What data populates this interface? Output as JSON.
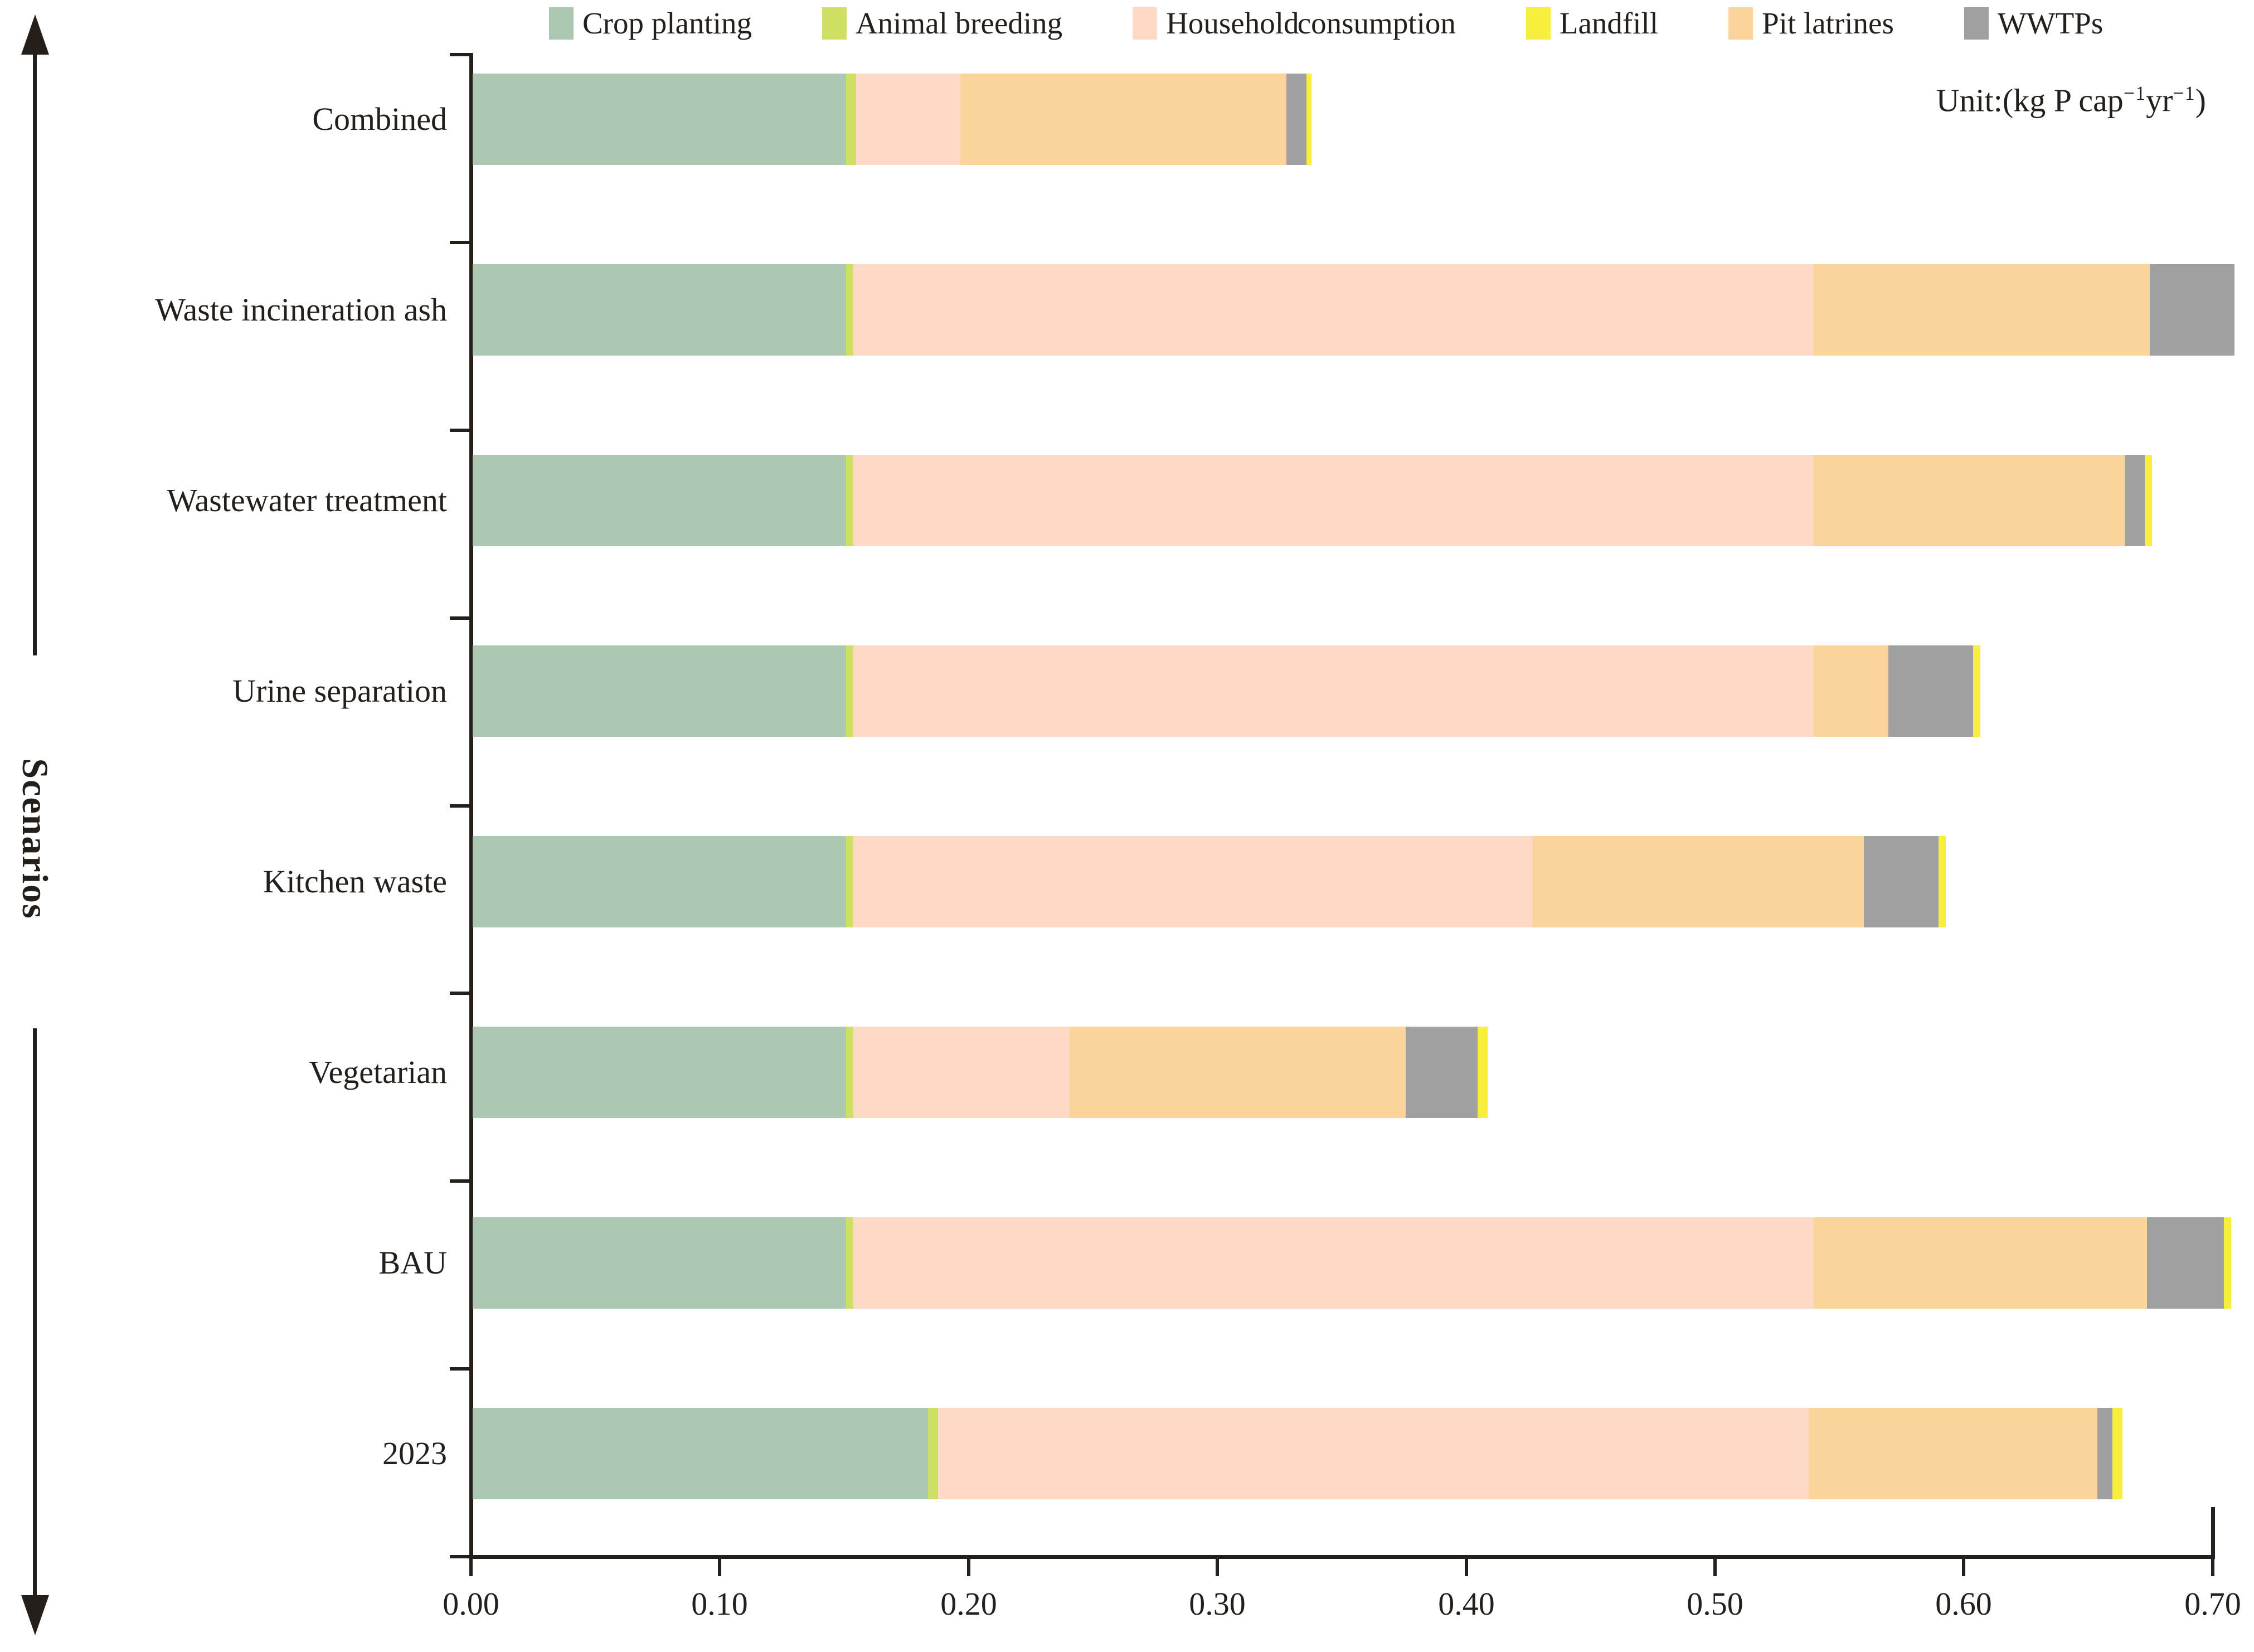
{
  "labels": {
    "ylabel": "Scenarios",
    "unit_parts": [
      {
        "type": "text",
        "value": "Unit:(kg P cap"
      },
      {
        "type": "sup",
        "value": "−1"
      },
      {
        "type": "text",
        "value": "yr"
      },
      {
        "type": "sup",
        "value": "−1"
      },
      {
        "type": "text",
        "value": ")"
      }
    ]
  },
  "chart_data": {
    "type": "bar",
    "orientation": "horizontal",
    "stacked": true,
    "title": "",
    "xlabel": "",
    "ylabel": "Scenarios",
    "unit": "kg P cap−1 yr−1",
    "xlim": [
      0.0,
      0.7
    ],
    "xticks": [
      "0.00",
      "0.10",
      "0.20",
      "0.30",
      "0.40",
      "0.50",
      "0.60",
      "0.70"
    ],
    "grid": false,
    "legend_position": "top",
    "categories": [
      "Combined",
      "Waste incineration ash",
      "Wastewater treatment",
      "Urine separation",
      "Kitchen waste",
      "Vegetarian",
      "BAU",
      "2023"
    ],
    "series": [
      {
        "name": "Crop planting",
        "color": "#adc8b2",
        "values": [
          0.15,
          0.15,
          0.15,
          0.15,
          0.15,
          0.15,
          0.15,
          0.183
        ]
      },
      {
        "name": "Animal breeding",
        "color": "#cfdf63",
        "values": [
          0.004,
          0.003,
          0.003,
          0.003,
          0.003,
          0.003,
          0.003,
          0.004
        ]
      },
      {
        "name": "Household consumption",
        "color": "#fdd9c6",
        "values": [
          0.042,
          0.386,
          0.386,
          0.386,
          0.273,
          0.087,
          0.386,
          0.35
        ]
      },
      {
        "name": "Landfill",
        "color": "#f8ee3c",
        "values": [
          0.002,
          0.0,
          0.003,
          0.003,
          0.003,
          0.004,
          0.003,
          0.004
        ]
      },
      {
        "name": "Pit latrines",
        "color": "#fbd49c",
        "values": [
          0.131,
          0.135,
          0.125,
          0.03,
          0.133,
          0.135,
          0.134,
          0.116
        ]
      },
      {
        "name": "WWTPs",
        "color": "#a0a0a0",
        "values": [
          0.008,
          0.034,
          0.008,
          0.034,
          0.03,
          0.029,
          0.031,
          0.006
        ]
      }
    ],
    "stack_order": [
      "Crop planting",
      "Animal breeding",
      "Household consumption",
      "Pit latrines",
      "WWTPs",
      "Landfill"
    ],
    "totals": [
      0.337,
      0.708,
      0.675,
      0.606,
      0.592,
      0.408,
      0.707,
      0.663
    ]
  }
}
